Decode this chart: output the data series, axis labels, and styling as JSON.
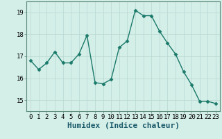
{
  "x": [
    0,
    1,
    2,
    3,
    4,
    5,
    6,
    7,
    8,
    9,
    10,
    11,
    12,
    13,
    14,
    15,
    16,
    17,
    18,
    19,
    20,
    21,
    22,
    23
  ],
  "y": [
    16.8,
    16.4,
    16.7,
    17.2,
    16.7,
    16.7,
    17.1,
    17.95,
    15.8,
    15.75,
    15.95,
    17.4,
    17.7,
    19.1,
    18.85,
    18.85,
    18.15,
    17.6,
    17.1,
    16.3,
    15.7,
    14.95,
    14.95,
    14.85
  ],
  "line_color": "#1a7a6a",
  "marker": "D",
  "marker_size": 2.5,
  "line_width": 1.0,
  "xlabel": "Humidex (Indice chaleur)",
  "xlabel_fontsize": 8,
  "ylim": [
    14.5,
    19.5
  ],
  "xlim": [
    -0.5,
    23.5
  ],
  "yticks": [
    15,
    16,
    17,
    18,
    19
  ],
  "xticks": [
    0,
    1,
    2,
    3,
    4,
    5,
    6,
    7,
    8,
    9,
    10,
    11,
    12,
    13,
    14,
    15,
    16,
    17,
    18,
    19,
    20,
    21,
    22,
    23
  ],
  "grid_color": "#b8d8d0",
  "grid_linewidth": 0.5,
  "bg_color": "#d4eee8",
  "tick_fontsize": 6.5,
  "spine_color": "#5a8a7a"
}
